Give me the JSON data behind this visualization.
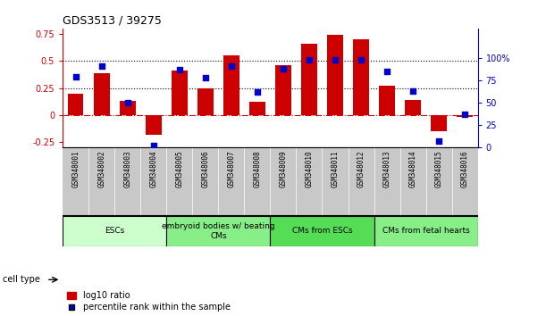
{
  "title": "GDS3513 / 39275",
  "samples": [
    "GSM348001",
    "GSM348002",
    "GSM348003",
    "GSM348004",
    "GSM348005",
    "GSM348006",
    "GSM348007",
    "GSM348008",
    "GSM348009",
    "GSM348010",
    "GSM348011",
    "GSM348012",
    "GSM348013",
    "GSM348014",
    "GSM348015",
    "GSM348016"
  ],
  "log10_ratio": [
    0.2,
    0.39,
    0.13,
    -0.18,
    0.41,
    0.25,
    0.55,
    0.12,
    0.46,
    0.66,
    0.74,
    0.7,
    0.27,
    0.14,
    -0.15,
    -0.02
  ],
  "percentile_rank": [
    79,
    91,
    50,
    2,
    87,
    78,
    91,
    62,
    88,
    98,
    98,
    98,
    85,
    63,
    7,
    37
  ],
  "bar_color": "#cc0000",
  "dot_color": "#0000cc",
  "left_ylim": [
    -0.3,
    0.8
  ],
  "left_yticks": [
    -0.25,
    0.0,
    0.25,
    0.5,
    0.75
  ],
  "left_yticklabels": [
    "-0.25",
    "0",
    "0.25",
    "0.5",
    "0.75"
  ],
  "right_ylim": [
    0,
    133.33
  ],
  "right_yticks": [
    0,
    25,
    50,
    75,
    100
  ],
  "right_yticklabels": [
    "0",
    "25",
    "50",
    "75",
    "100%"
  ],
  "hlines": [
    0.25,
    0.5
  ],
  "hline_color": "black",
  "zero_line_color": "#cc0000",
  "cell_groups": [
    {
      "label": "ESCs",
      "start": 0,
      "end": 3,
      "color": "#ccffcc"
    },
    {
      "label": "embryoid bodies w/ beating\nCMs",
      "start": 4,
      "end": 7,
      "color": "#88ee88"
    },
    {
      "label": "CMs from ESCs",
      "start": 8,
      "end": 11,
      "color": "#55dd55"
    },
    {
      "label": "CMs from fetal hearts",
      "start": 12,
      "end": 15,
      "color": "#88ee88"
    }
  ],
  "cell_type_label": "cell type",
  "legend_red_label": "log10 ratio",
  "legend_blue_label": "percentile rank within the sample",
  "bg_color": "#ffffff",
  "label_bg": "#c8c8c8",
  "left_spine_color": "#cc0000",
  "right_spine_color": "#0000cc"
}
